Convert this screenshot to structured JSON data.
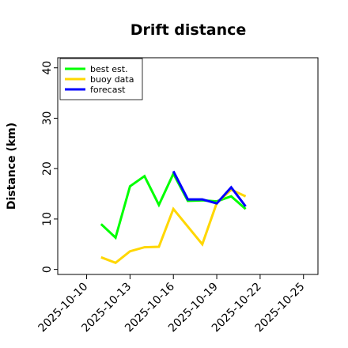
{
  "chart_data": {
    "type": "line",
    "title": "Drift distance",
    "xlabel": "",
    "ylabel": "Distance (km)",
    "xlim": [
      "2025-10-08",
      "2025-10-26"
    ],
    "ylim": [
      -1,
      42
    ],
    "yticks": [
      0,
      10,
      20,
      30,
      40
    ],
    "xticks": [
      "2025-10-10",
      "2025-10-13",
      "2025-10-16",
      "2025-10-19",
      "2025-10-22",
      "2025-10-25"
    ],
    "highlight_tick": "2025-10-16",
    "highlight_color": "#228b22",
    "grid": false,
    "legend": "top-left",
    "series": [
      {
        "name": "best est.",
        "color": "#00ff00",
        "points": [
          [
            "2025-10-11",
            9.0
          ],
          [
            "2025-10-12",
            6.3
          ],
          [
            "2025-10-13",
            16.5
          ],
          [
            "2025-10-14",
            18.5
          ],
          [
            "2025-10-15",
            12.8
          ],
          [
            "2025-10-16",
            19.0
          ],
          [
            "2025-10-17",
            13.6
          ],
          [
            "2025-10-18",
            13.7
          ],
          [
            "2025-10-19",
            13.5
          ],
          [
            "2025-10-20",
            14.5
          ],
          [
            "2025-10-21",
            12.0
          ]
        ]
      },
      {
        "name": "buoy data",
        "color": "#ffd700",
        "points": [
          [
            "2025-10-11",
            2.4
          ],
          [
            "2025-10-12",
            1.3
          ],
          [
            "2025-10-13",
            3.6
          ],
          [
            "2025-10-14",
            4.4
          ],
          [
            "2025-10-15",
            4.5
          ],
          [
            "2025-10-16",
            12.0
          ],
          [
            "2025-10-18",
            5.0
          ],
          [
            "2025-10-19",
            13.2
          ],
          [
            "2025-10-20",
            15.8
          ],
          [
            "2025-10-21",
            14.5
          ]
        ]
      },
      {
        "name": "forecast",
        "color": "#0000ff",
        "points": [
          [
            "2025-10-16",
            19.5
          ],
          [
            "2025-10-17",
            13.9
          ],
          [
            "2025-10-18",
            13.9
          ],
          [
            "2025-10-19",
            13.1
          ],
          [
            "2025-10-20",
            16.3
          ],
          [
            "2025-10-21",
            12.5
          ]
        ]
      }
    ]
  }
}
